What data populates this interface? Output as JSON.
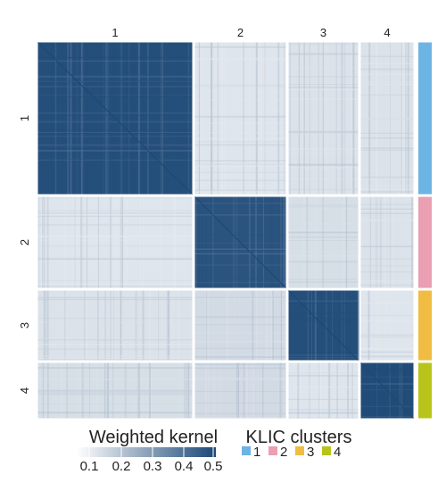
{
  "chart_data": {
    "type": "heatmap",
    "title": "",
    "cluster_labels": [
      "1",
      "2",
      "3",
      "4"
    ],
    "cluster_colors": [
      "#6cb4e4",
      "#ea9fb3",
      "#f0bc42",
      "#b8c41a"
    ],
    "block_values": [
      [
        0.48,
        0.07,
        0.08,
        0.08
      ],
      [
        0.07,
        0.47,
        0.09,
        0.08
      ],
      [
        0.08,
        0.1,
        0.48,
        0.07
      ],
      [
        0.09,
        0.1,
        0.07,
        0.49
      ]
    ],
    "diagonal_value": 0.5,
    "color_scale": {
      "low_color": "#ffffff",
      "high_color": "#1c4876",
      "min": 0.0,
      "max": 0.5
    }
  },
  "legend": {
    "kernel_title": "Weighted kernel",
    "kernel_ticks": [
      "0.1",
      "0.2",
      "0.3",
      "0.4",
      "0.5"
    ],
    "cluster_title": "KLIC clusters",
    "cluster_items": [
      "1",
      "2",
      "3",
      "4"
    ]
  }
}
